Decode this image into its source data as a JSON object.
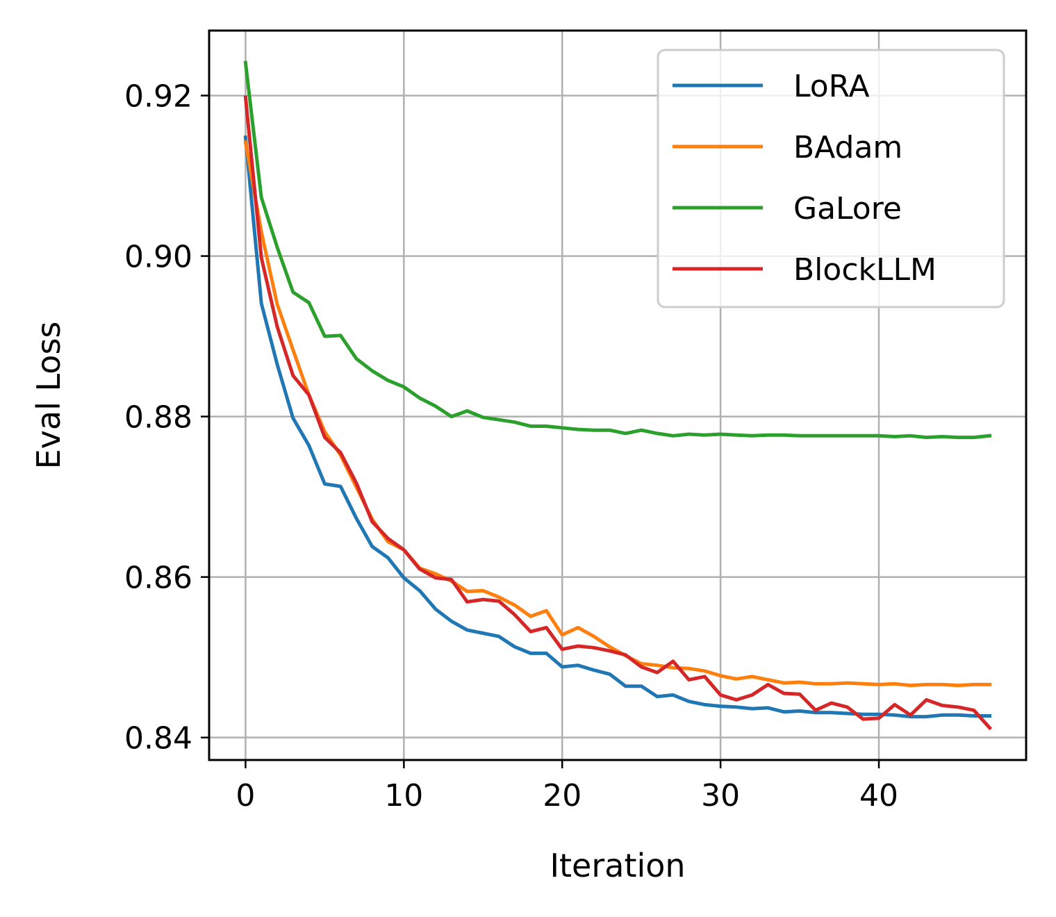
{
  "chart_data": {
    "type": "line",
    "title": "",
    "xlabel": "Iteration",
    "ylabel": "Eval Loss",
    "xlim": [
      -2.3,
      49.3
    ],
    "ylim": [
      0.8372,
      0.9281
    ],
    "xticks": [
      0,
      10,
      20,
      30,
      40
    ],
    "xtick_labels": [
      "0",
      "10",
      "20",
      "30",
      "40"
    ],
    "yticks": [
      0.84,
      0.86,
      0.88,
      0.9,
      0.92
    ],
    "ytick_labels": [
      "0.84",
      "0.86",
      "0.88",
      "0.90",
      "0.92"
    ],
    "grid": true,
    "legend_position": "top-right",
    "x": [
      0,
      1,
      2,
      3,
      4,
      5,
      6,
      7,
      8,
      9,
      10,
      11,
      12,
      13,
      14,
      15,
      16,
      17,
      18,
      19,
      20,
      21,
      22,
      23,
      24,
      25,
      26,
      27,
      28,
      29,
      30,
      31,
      32,
      33,
      34,
      35,
      36,
      37,
      38,
      39,
      40,
      41,
      42,
      43,
      44,
      45,
      46,
      47
    ],
    "series": [
      {
        "name": "LoRA",
        "color": "#1f77b4",
        "values": [
          0.9148,
          0.8941,
          0.8865,
          0.8798,
          0.8764,
          0.8716,
          0.8713,
          0.8673,
          0.8638,
          0.8624,
          0.8599,
          0.8583,
          0.856,
          0.8545,
          0.8534,
          0.853,
          0.8526,
          0.8513,
          0.8505,
          0.8505,
          0.8488,
          0.849,
          0.8484,
          0.8479,
          0.8464,
          0.8464,
          0.8451,
          0.8453,
          0.8445,
          0.8441,
          0.8439,
          0.8438,
          0.8436,
          0.8437,
          0.8432,
          0.8433,
          0.8431,
          0.8431,
          0.843,
          0.8429,
          0.8429,
          0.8428,
          0.8426,
          0.8426,
          0.8428,
          0.8428,
          0.8427,
          0.8427
        ]
      },
      {
        "name": "BAdam",
        "color": "#ff7f0e",
        "values": [
          0.9142,
          0.903,
          0.894,
          0.8883,
          0.8827,
          0.8781,
          0.8752,
          0.8712,
          0.8672,
          0.8644,
          0.8634,
          0.8611,
          0.8604,
          0.8595,
          0.8582,
          0.8583,
          0.8575,
          0.8565,
          0.8551,
          0.8558,
          0.8528,
          0.8537,
          0.8526,
          0.8513,
          0.8502,
          0.8492,
          0.849,
          0.8487,
          0.8486,
          0.8483,
          0.8477,
          0.8473,
          0.8476,
          0.8472,
          0.8468,
          0.8469,
          0.8467,
          0.8467,
          0.8468,
          0.8467,
          0.8466,
          0.8467,
          0.8465,
          0.8466,
          0.8466,
          0.8465,
          0.8466,
          0.8466
        ]
      },
      {
        "name": "GaLore",
        "color": "#2ca02c",
        "values": [
          0.9241,
          0.9073,
          0.9011,
          0.8955,
          0.8942,
          0.89,
          0.8901,
          0.8872,
          0.8857,
          0.8845,
          0.8837,
          0.8823,
          0.8813,
          0.88,
          0.8807,
          0.8799,
          0.8796,
          0.8793,
          0.8788,
          0.8788,
          0.8786,
          0.8784,
          0.8783,
          0.8783,
          0.8779,
          0.8783,
          0.8779,
          0.8776,
          0.8778,
          0.8777,
          0.8778,
          0.8777,
          0.8776,
          0.8777,
          0.8777,
          0.8776,
          0.8776,
          0.8776,
          0.8776,
          0.8776,
          0.8776,
          0.8775,
          0.8776,
          0.8774,
          0.8775,
          0.8774,
          0.8774,
          0.8776
        ]
      },
      {
        "name": "BlockLLM",
        "color": "#d62728",
        "values": [
          0.9198,
          0.8998,
          0.8912,
          0.8851,
          0.8827,
          0.8774,
          0.8755,
          0.8717,
          0.8669,
          0.8648,
          0.8634,
          0.861,
          0.8599,
          0.8597,
          0.8569,
          0.8572,
          0.857,
          0.8553,
          0.8532,
          0.8537,
          0.851,
          0.8514,
          0.8512,
          0.8508,
          0.8503,
          0.8488,
          0.8481,
          0.8495,
          0.8472,
          0.8476,
          0.8453,
          0.8447,
          0.8453,
          0.8466,
          0.8455,
          0.8454,
          0.8434,
          0.8443,
          0.8438,
          0.8423,
          0.8424,
          0.8441,
          0.8428,
          0.8447,
          0.844,
          0.8438,
          0.8434,
          0.8412
        ]
      }
    ]
  }
}
